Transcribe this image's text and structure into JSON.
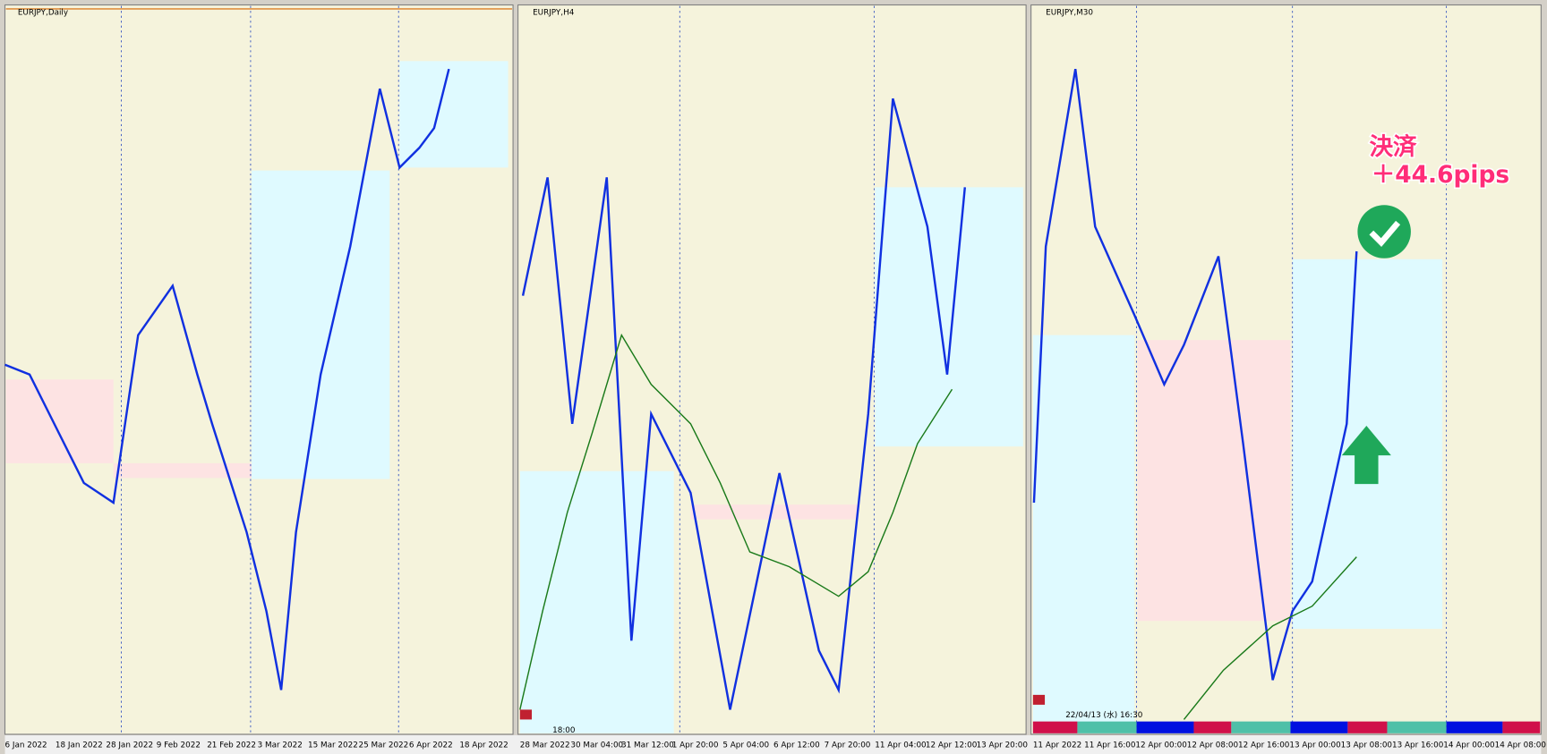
{
  "panels": [
    {
      "title": "EURJPY,Daily",
      "x_labels": [
        "6 Jan 2022",
        "18 Jan 2022",
        "28 Jan 2022",
        "9 Feb 2022",
        "21 Feb 2022",
        "3 Mar 2022",
        "15 Mar 2022",
        "25 Mar 2022",
        "6 Apr 2022",
        "18 Apr 2022"
      ]
    },
    {
      "title": "EURJPY,H4",
      "x_labels": [
        "28 Mar 2022",
        "30 Mar 04:00",
        "31 Mar 12:00",
        "1 Apr 20:00",
        "5 Apr 04:00",
        "6 Apr 12:00",
        "7 Apr 20:00",
        "11 Apr 04:00",
        "12 Apr 12:00",
        "13 Apr 20:00"
      ],
      "time": "18:00"
    },
    {
      "title": "EURJPY,M30",
      "x_labels": [
        "11 Apr 2022",
        "11 Apr 16:00",
        "12 Apr 00:00",
        "12 Apr 08:00",
        "12 Apr 16:00",
        "13 Apr 00:00",
        "13 Apr 08:00",
        "13 Apr 16:00",
        "14 Apr 00:00",
        "14 Apr 08:00"
      ],
      "timestamp": "22/04/13 (水) 16:30",
      "annotation": [
        "決済",
        "＋44.6pips"
      ]
    }
  ]
}
